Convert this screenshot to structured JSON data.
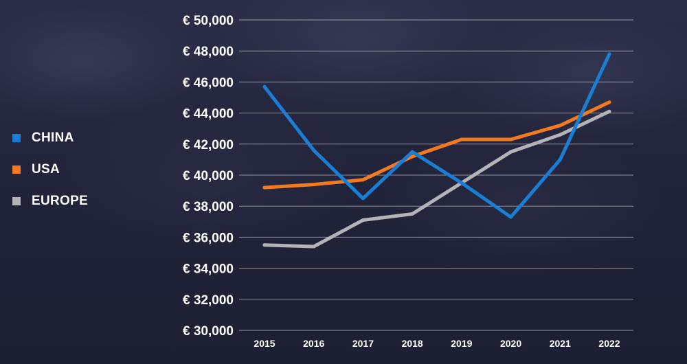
{
  "chart_data": {
    "type": "line",
    "title": "",
    "xlabel": "",
    "ylabel": "",
    "categories": [
      "2015",
      "2016",
      "2017",
      "2018",
      "2019",
      "2020",
      "2021",
      "2022"
    ],
    "y_tick_labels": [
      "€ 50,000",
      "€ 48,000",
      "€ 46,000",
      "€ 44,000",
      "€ 42,000",
      "€ 40,000",
      "€ 38,000",
      "€ 36,000",
      "€ 34,000",
      "€ 32,000",
      "€ 30,000"
    ],
    "ylim": [
      30000,
      50000
    ],
    "grid": true,
    "legend_position": "left",
    "series": [
      {
        "name": "CHINA",
        "color": "#1a7fd4",
        "values": [
          45700,
          41600,
          38500,
          41500,
          39500,
          37300,
          41000,
          47800
        ]
      },
      {
        "name": "USA",
        "color": "#f47a1f",
        "values": [
          39200,
          39400,
          39700,
          41200,
          42300,
          42300,
          43200,
          44700
        ]
      },
      {
        "name": "EUROPE",
        "color": "#b4b4b8",
        "values": [
          35500,
          35400,
          37100,
          37500,
          39500,
          41500,
          42600,
          44100
        ]
      }
    ]
  },
  "legend": {
    "items": [
      {
        "label": "CHINA",
        "color": "#1a7fd4"
      },
      {
        "label": "USA",
        "color": "#f47a1f"
      },
      {
        "label": "EUROPE",
        "color": "#b4b4b8"
      }
    ]
  }
}
